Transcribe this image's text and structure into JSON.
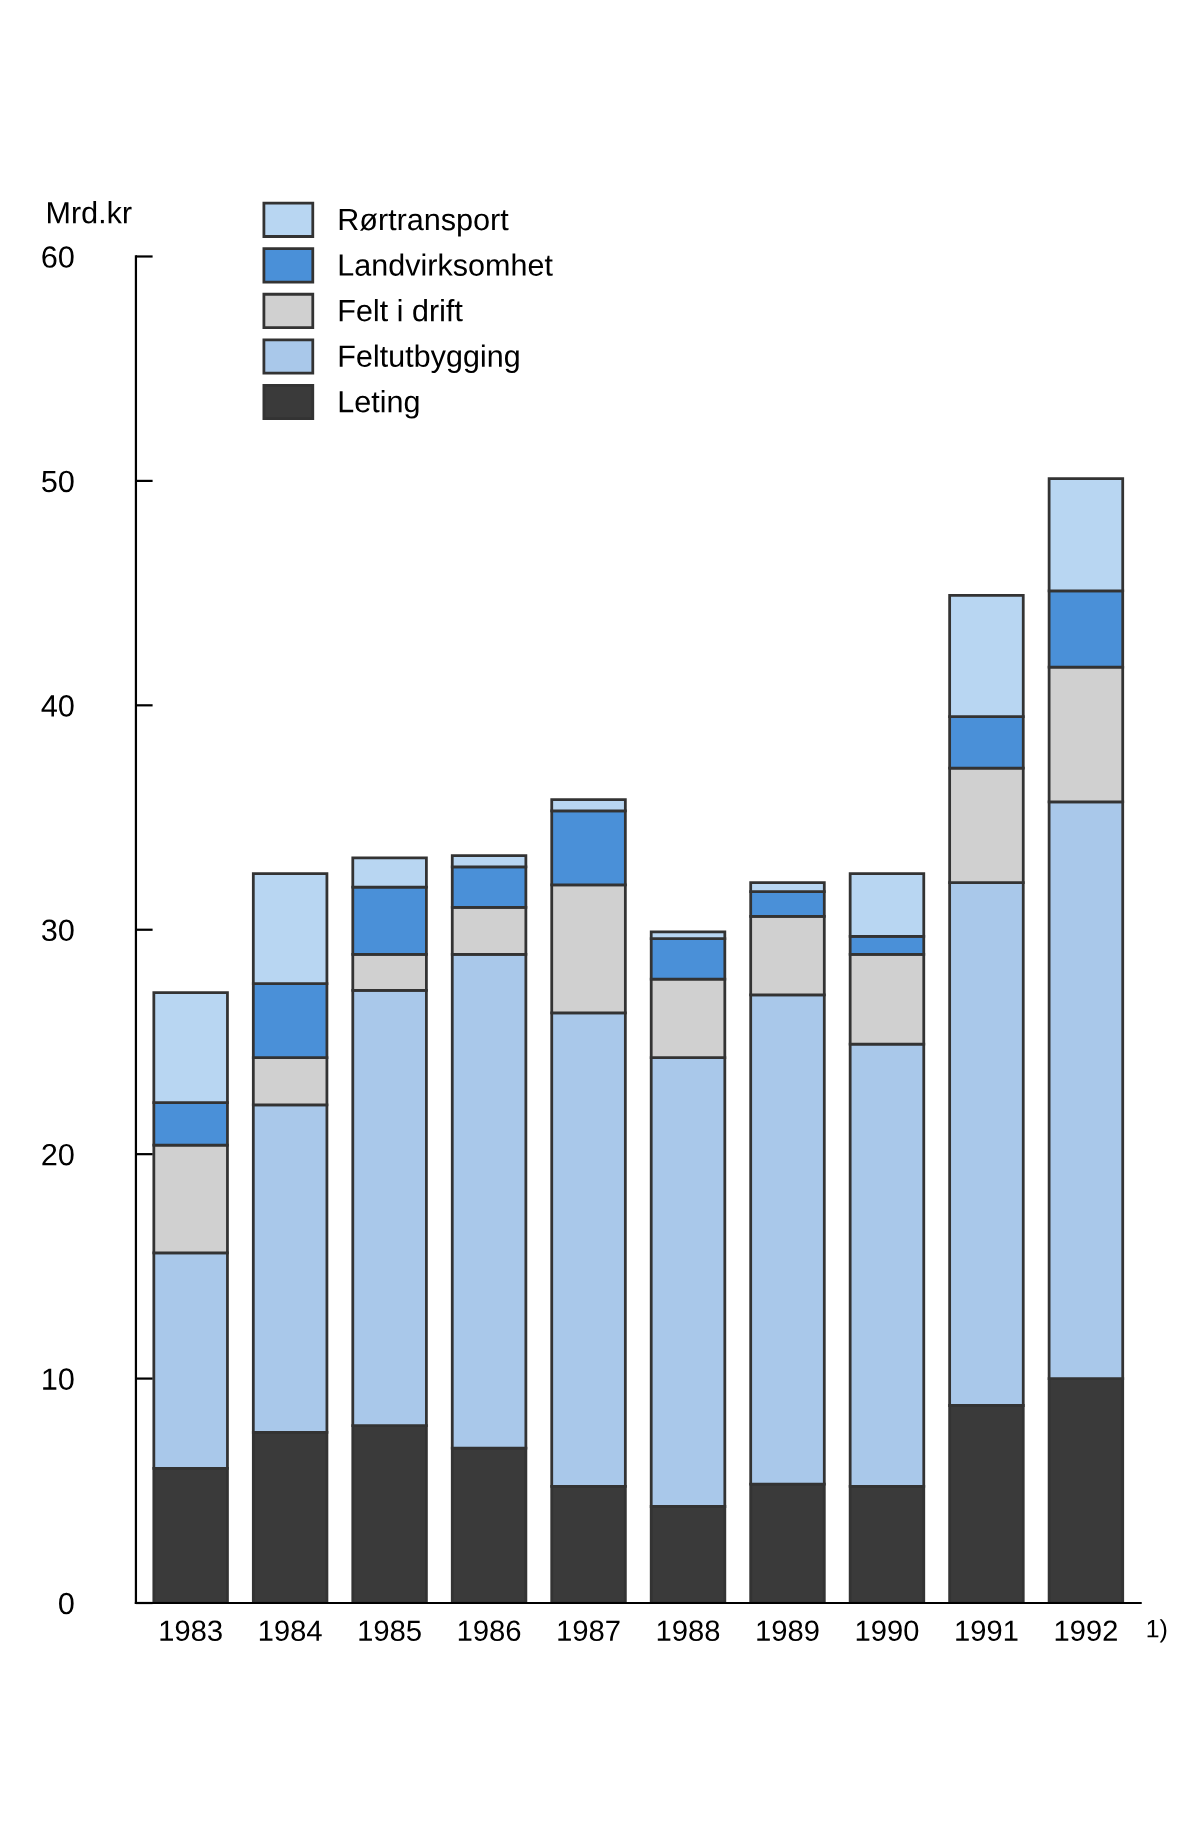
{
  "chart_data": {
    "type": "bar",
    "stacked": true,
    "ylabel": "Mrd.kr",
    "categories": [
      "1983",
      "1984",
      "1985",
      "1986",
      "1987",
      "1988",
      "1989",
      "1990",
      "1991",
      "1992"
    ],
    "series": [
      {
        "name": "Leting",
        "color": "#3a3a3a",
        "values": [
          6.0,
          7.6,
          7.9,
          6.9,
          5.2,
          4.3,
          5.3,
          5.2,
          8.8,
          10.0
        ]
      },
      {
        "name": "Feltutbygging",
        "color": "#a9c8ea",
        "values": [
          9.6,
          14.6,
          19.4,
          22.0,
          21.1,
          20.0,
          21.8,
          19.7,
          23.3,
          25.7
        ]
      },
      {
        "name": "Felt i drift",
        "color": "#d0d0d0",
        "values": [
          4.8,
          2.1,
          1.6,
          2.1,
          5.7,
          3.5,
          3.5,
          4.0,
          5.1,
          6.0
        ]
      },
      {
        "name": "Landvirksomhet",
        "color": "#4a90d8",
        "values": [
          1.9,
          3.3,
          3.0,
          1.8,
          3.3,
          1.8,
          1.1,
          0.8,
          2.3,
          3.4
        ]
      },
      {
        "name": "Rørtransport",
        "color": "#b8d6f2",
        "values": [
          4.9,
          4.9,
          1.3,
          0.5,
          0.5,
          0.3,
          0.4,
          2.8,
          5.4,
          5.0
        ]
      }
    ],
    "ylim": [
      0,
      60
    ],
    "yticks": [
      0,
      10,
      20,
      30,
      40,
      50,
      60
    ],
    "grid": false,
    "legend": "top left",
    "annotations": [
      "1)"
    ]
  }
}
